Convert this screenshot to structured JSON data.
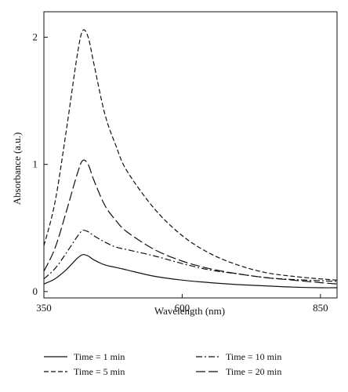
{
  "chart_data": {
    "type": "line",
    "title": "",
    "xlabel": "Wavelength (nm)",
    "ylabel": "Absorbance (a.u.)",
    "xlim": [
      350,
      880
    ],
    "ylim": [
      -0.05,
      2.2
    ],
    "xticks": [
      350,
      600,
      850
    ],
    "yticks": [
      0,
      1,
      2
    ],
    "grid": false,
    "legend": "bottom",
    "series": [
      {
        "name": "Time = 1 min",
        "style": "solid",
        "x": [
          350,
          370,
          390,
          410,
          420,
          430,
          440,
          460,
          480,
          500,
          550,
          600,
          650,
          700,
          750,
          800,
          850,
          880
        ],
        "y": [
          0.06,
          0.1,
          0.17,
          0.26,
          0.29,
          0.28,
          0.25,
          0.21,
          0.19,
          0.17,
          0.12,
          0.09,
          0.07,
          0.055,
          0.045,
          0.035,
          0.03,
          0.03
        ]
      },
      {
        "name": "Time = 5 min",
        "style": "dashed",
        "x": [
          350,
          370,
          390,
          410,
          420,
          430,
          440,
          460,
          480,
          500,
          550,
          600,
          650,
          700,
          750,
          800,
          850,
          880
        ],
        "y": [
          0.36,
          0.7,
          1.25,
          1.85,
          2.05,
          2.0,
          1.8,
          1.4,
          1.15,
          0.95,
          0.65,
          0.44,
          0.3,
          0.21,
          0.15,
          0.12,
          0.1,
          0.09
        ]
      },
      {
        "name": "Time = 10 min",
        "style": "dashdot",
        "x": [
          350,
          370,
          390,
          410,
          420,
          430,
          440,
          460,
          480,
          500,
          550,
          600,
          650,
          700,
          750,
          800,
          850,
          880
        ],
        "y": [
          0.1,
          0.18,
          0.3,
          0.43,
          0.48,
          0.47,
          0.44,
          0.39,
          0.35,
          0.33,
          0.28,
          0.22,
          0.17,
          0.14,
          0.11,
          0.095,
          0.085,
          0.08
        ]
      },
      {
        "name": "Time = 20 min",
        "style": "longdash",
        "x": [
          350,
          370,
          390,
          410,
          420,
          430,
          440,
          460,
          480,
          500,
          550,
          600,
          650,
          700,
          750,
          800,
          850,
          880
        ],
        "y": [
          0.16,
          0.34,
          0.62,
          0.92,
          1.03,
          1.0,
          0.88,
          0.68,
          0.56,
          0.47,
          0.33,
          0.24,
          0.18,
          0.14,
          0.11,
          0.09,
          0.07,
          0.06
        ]
      }
    ]
  }
}
